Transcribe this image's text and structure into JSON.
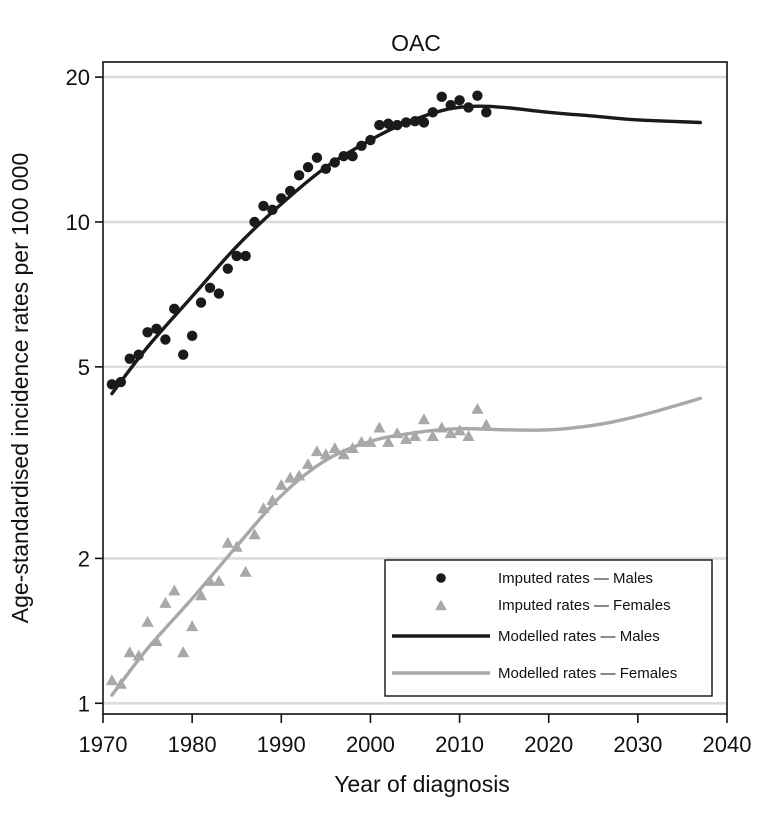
{
  "chart_data": {
    "type": "scatter",
    "title": "OAC",
    "xlabel": "Year of diagnosis",
    "ylabel": "Age-standardised incidence rates per 100 000",
    "x_ticks": [
      1970,
      1980,
      1990,
      2000,
      2010,
      2020,
      2030,
      2040
    ],
    "y_ticks": [
      1,
      2,
      5,
      10,
      20
    ],
    "xlim": [
      1970,
      2040
    ],
    "ylim": [
      0.95,
      21.5
    ],
    "y_scale": "log",
    "grid": "horizontal",
    "legend_position": "bottom-right",
    "legend": [
      {
        "label": "Imputed rates — Males",
        "marker": "circle",
        "color": "#1a1a1a"
      },
      {
        "label": "Imputed rates — Females",
        "marker": "triangle",
        "color": "#a8a8a8"
      },
      {
        "label": "Modelled rates — Males",
        "marker": "line",
        "color": "#1a1a1a"
      },
      {
        "label": "Modelled rates — Females",
        "marker": "line",
        "color": "#a8a8a8"
      }
    ],
    "series": [
      {
        "name": "Imputed rates — Males",
        "kind": "points",
        "marker": "circle",
        "color": "#1a1a1a",
        "x": [
          1971,
          1972,
          1973,
          1974,
          1975,
          1976,
          1977,
          1978,
          1979,
          1980,
          1981,
          1982,
          1983,
          1984,
          1985,
          1986,
          1987,
          1988,
          1989,
          1990,
          1991,
          1992,
          1993,
          1994,
          1995,
          1996,
          1997,
          1998,
          1999,
          2000,
          2001,
          2002,
          2003,
          2004,
          2005,
          2006,
          2007,
          2008,
          2009,
          2010,
          2011,
          2012,
          2013
        ],
        "y": [
          4.6,
          4.65,
          5.2,
          5.3,
          5.9,
          6.0,
          5.7,
          6.6,
          5.3,
          5.8,
          6.8,
          7.3,
          7.1,
          8.0,
          8.5,
          8.5,
          10.0,
          10.8,
          10.6,
          11.2,
          11.6,
          12.5,
          13.0,
          13.6,
          12.9,
          13.3,
          13.7,
          13.7,
          14.4,
          14.8,
          15.9,
          16.0,
          15.9,
          16.1,
          16.2,
          16.1,
          16.9,
          18.2,
          17.5,
          17.9,
          17.3,
          18.3,
          16.9
        ]
      },
      {
        "name": "Imputed rates — Females",
        "kind": "points",
        "marker": "triangle",
        "color": "#a8a8a8",
        "x": [
          1971,
          1972,
          1973,
          1974,
          1975,
          1976,
          1977,
          1978,
          1979,
          1980,
          1981,
          1982,
          1983,
          1984,
          1985,
          1986,
          1987,
          1988,
          1989,
          1990,
          1991,
          1992,
          1993,
          1994,
          1995,
          1996,
          1997,
          1998,
          1999,
          2000,
          2001,
          2002,
          2003,
          2004,
          2005,
          2006,
          2007,
          2008,
          2009,
          2010,
          2011,
          2012,
          2013
        ],
        "y": [
          1.12,
          1.1,
          1.28,
          1.26,
          1.48,
          1.35,
          1.62,
          1.72,
          1.28,
          1.45,
          1.68,
          1.8,
          1.8,
          2.16,
          2.12,
          1.88,
          2.25,
          2.55,
          2.65,
          2.85,
          2.95,
          2.98,
          3.15,
          3.35,
          3.3,
          3.4,
          3.3,
          3.4,
          3.5,
          3.5,
          3.75,
          3.5,
          3.65,
          3.55,
          3.6,
          3.9,
          3.6,
          3.75,
          3.65,
          3.7,
          3.6,
          4.1,
          3.8
        ]
      },
      {
        "name": "Modelled rates — Males",
        "kind": "line",
        "color": "#1a1a1a",
        "x": [
          1971,
          1975,
          1980,
          1985,
          1990,
          1995,
          2000,
          2003,
          2006,
          2009,
          2012,
          2015,
          2020,
          2025,
          2030,
          2037
        ],
        "y": [
          4.4,
          5.5,
          7.0,
          8.9,
          10.9,
          13.0,
          14.8,
          15.8,
          16.6,
          17.2,
          17.4,
          17.3,
          16.9,
          16.6,
          16.3,
          16.1
        ]
      },
      {
        "name": "Modelled rates — Females",
        "kind": "line",
        "color": "#a8a8a8",
        "x": [
          1971,
          1975,
          1980,
          1985,
          1990,
          1995,
          2000,
          2005,
          2010,
          2015,
          2020,
          2025,
          2030,
          2037
        ],
        "y": [
          1.04,
          1.3,
          1.65,
          2.12,
          2.7,
          3.2,
          3.5,
          3.65,
          3.72,
          3.7,
          3.7,
          3.78,
          3.95,
          4.3
        ]
      }
    ]
  }
}
